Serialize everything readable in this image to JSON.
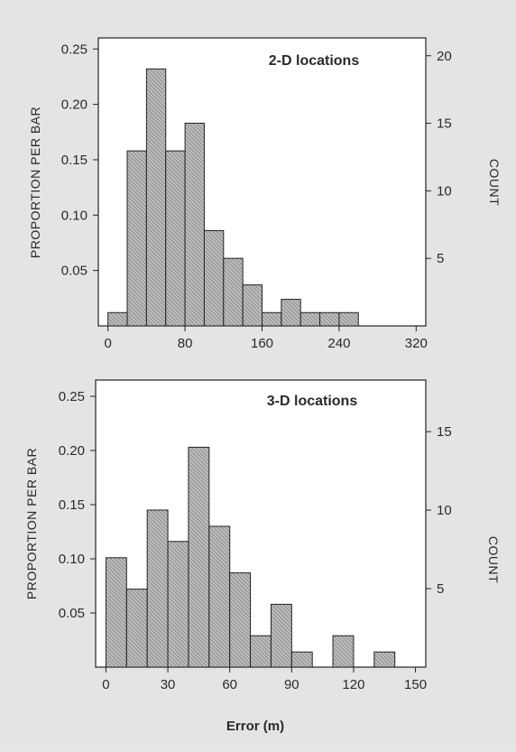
{
  "xlabel": "Error (m)",
  "chart_data": [
    {
      "type": "bar",
      "title": "2-D locations",
      "ylabel_left": "PROPORTION PER BAR",
      "ylabel_right": "COUNT",
      "bin_edges": [
        0,
        20,
        40,
        60,
        80,
        100,
        120,
        140,
        160,
        180,
        200,
        220,
        240,
        260
      ],
      "proportions": [
        0.012,
        0.158,
        0.232,
        0.158,
        0.183,
        0.086,
        0.061,
        0.037,
        0.012,
        0.024,
        0.012,
        0.012,
        0.012
      ],
      "xticks": [
        0,
        80,
        160,
        240,
        320
      ],
      "xlim": [
        -10,
        330
      ],
      "yticks_left": [
        0.05,
        0.1,
        0.15,
        0.2,
        0.25
      ],
      "yticks_left_labels": [
        "0.05",
        "0.10",
        "0.15",
        "0.20",
        "0.25"
      ],
      "ylim": [
        0,
        0.26
      ],
      "yticks_right": [
        5,
        10,
        15,
        20
      ],
      "total_count": 82
    },
    {
      "type": "bar",
      "title": "3-D locations",
      "ylabel_left": "PROPORTION PER BAR",
      "ylabel_right": "COUNT",
      "bin_edges": [
        0,
        10,
        20,
        30,
        40,
        50,
        60,
        70,
        80,
        90,
        100,
        110,
        120,
        130,
        140
      ],
      "proportions": [
        0.101,
        0.072,
        0.145,
        0.116,
        0.203,
        0.13,
        0.087,
        0.029,
        0.058,
        0.014,
        0,
        0.029,
        0,
        0.014
      ],
      "xticks": [
        0,
        30,
        60,
        90,
        120,
        150
      ],
      "xlim": [
        -5,
        155
      ],
      "yticks_left": [
        0.05,
        0.1,
        0.15,
        0.2,
        0.25
      ],
      "yticks_left_labels": [
        "0.05",
        "0.10",
        "0.15",
        "0.20",
        "0.25"
      ],
      "ylim": [
        0,
        0.265
      ],
      "yticks_right": [
        5,
        10,
        15
      ],
      "total_count": 69
    }
  ]
}
